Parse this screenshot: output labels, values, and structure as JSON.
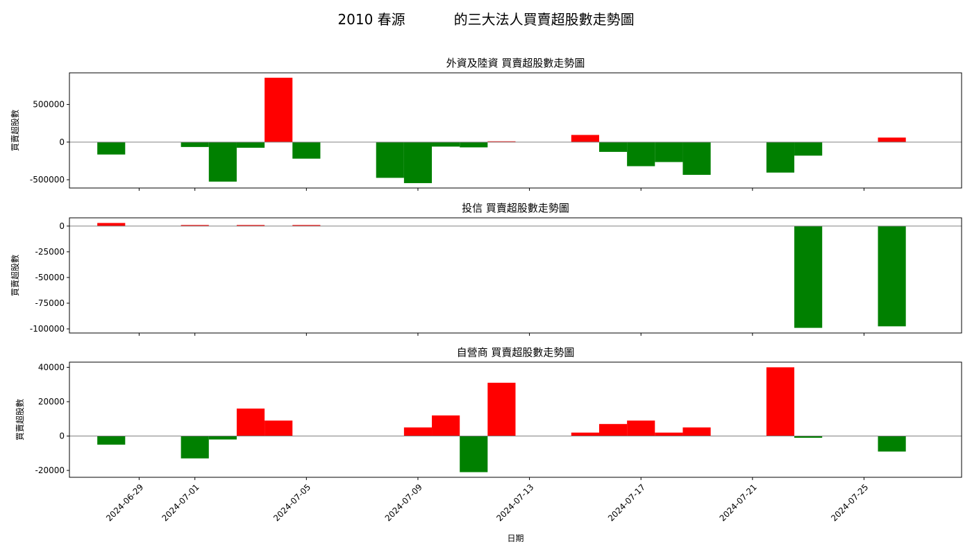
{
  "figure": {
    "title": "2010 春源           的三大法人買賣超股數走勢圖",
    "xlabel": "日期"
  },
  "colors": {
    "positive": "#ff0000",
    "negative": "#008000",
    "zero_line": "#808080"
  },
  "chart_data": [
    {
      "type": "bar",
      "title": "外資及陸資 買賣超股數走勢圖",
      "ylabel": "買賣超股數",
      "ylim": [
        -610000,
        920000
      ],
      "yticks": [
        -500000,
        0,
        500000
      ],
      "x": [
        "2024-06-28",
        "2024-07-01",
        "2024-07-02",
        "2024-07-03",
        "2024-07-04",
        "2024-07-05",
        "2024-07-08",
        "2024-07-09",
        "2024-07-10",
        "2024-07-11",
        "2024-07-12",
        "2024-07-15",
        "2024-07-16",
        "2024-07-17",
        "2024-07-18",
        "2024-07-19",
        "2024-07-22",
        "2024-07-23",
        "2024-07-26"
      ],
      "values": [
        -165000,
        -65000,
        -525000,
        -75000,
        855000,
        -220000,
        -475000,
        -545000,
        -60000,
        -70000,
        10000,
        95000,
        -130000,
        -320000,
        -265000,
        -435000,
        -405000,
        -180000,
        60000
      ]
    },
    {
      "type": "bar",
      "title": "投信 買賣超股數走勢圖",
      "ylabel": "買賣超股數",
      "ylim": [
        -104000,
        8000
      ],
      "yticks": [
        -100000,
        -75000,
        -50000,
        -25000,
        0
      ],
      "x": [
        "2024-06-28",
        "2024-07-01",
        "2024-07-03",
        "2024-07-05",
        "2024-07-23",
        "2024-07-26"
      ],
      "values": [
        3000,
        1000,
        1000,
        1000,
        -99000,
        -97500
      ]
    },
    {
      "type": "bar",
      "title": "自營商 買賣超股數走勢圖",
      "ylabel": "買賣超股數",
      "ylim": [
        -24000,
        43000
      ],
      "yticks": [
        -20000,
        0,
        20000,
        40000
      ],
      "x": [
        "2024-06-28",
        "2024-07-01",
        "2024-07-02",
        "2024-07-03",
        "2024-07-04",
        "2024-07-09",
        "2024-07-10",
        "2024-07-11",
        "2024-07-12",
        "2024-07-15",
        "2024-07-16",
        "2024-07-17",
        "2024-07-18",
        "2024-07-19",
        "2024-07-22",
        "2024-07-23",
        "2024-07-26"
      ],
      "values": [
        -5000,
        -13000,
        -2000,
        16000,
        9000,
        5000,
        12000,
        -21000,
        31000,
        2000,
        7000,
        9000,
        2000,
        5000,
        40000,
        -1000,
        -9000
      ]
    }
  ],
  "x_axis": {
    "ticks": [
      "2024-06-29",
      "2024-07-01",
      "2024-07-05",
      "2024-07-09",
      "2024-07-13",
      "2024-07-17",
      "2024-07-21",
      "2024-07-25"
    ],
    "range": [
      "2024-06-26T12:00",
      "2024-07-28T12:00"
    ]
  }
}
